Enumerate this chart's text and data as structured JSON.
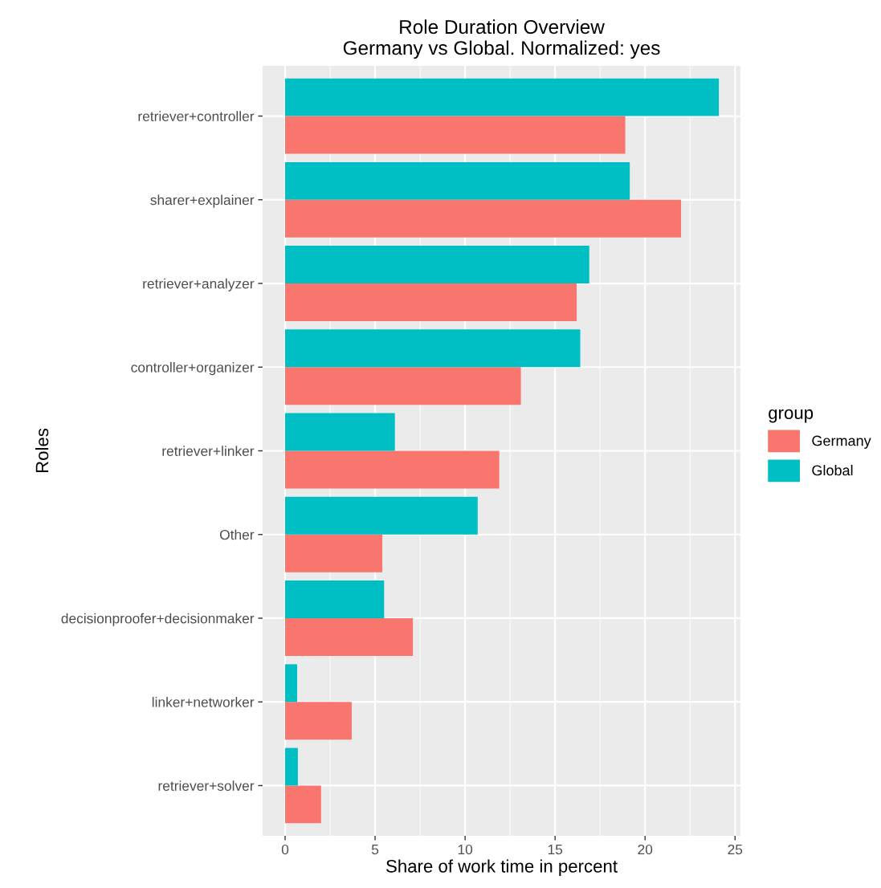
{
  "chart_data": {
    "type": "bar",
    "orientation": "horizontal",
    "title": "Role Duration Overview\nGermany vs Global. Normalized: yes",
    "xlabel": "Share of work time in percent",
    "ylabel": "Roles",
    "legend_title": "group",
    "legend": "right",
    "grid": true,
    "categories": [
      "retriever+controller",
      "sharer+explainer",
      "retriever+analyzer",
      "controller+organizer",
      "retriever+linker",
      "Other",
      "decisionproofer+decisionmaker",
      "linker+networker",
      "retriever+solver"
    ],
    "series": [
      {
        "name": "Germany",
        "color": "#f8766d",
        "values": [
          18.9,
          22.0,
          16.2,
          13.1,
          11.9,
          5.4,
          7.1,
          3.7,
          2.0
        ]
      },
      {
        "name": "Global",
        "color": "#00bfc4",
        "values": [
          24.1,
          19.15,
          16.9,
          16.4,
          6.1,
          10.7,
          5.5,
          0.67,
          0.71
        ]
      }
    ],
    "xlim": [
      -1.25,
      25.3
    ],
    "xticks": [
      0,
      5,
      10,
      15,
      20,
      25
    ]
  }
}
